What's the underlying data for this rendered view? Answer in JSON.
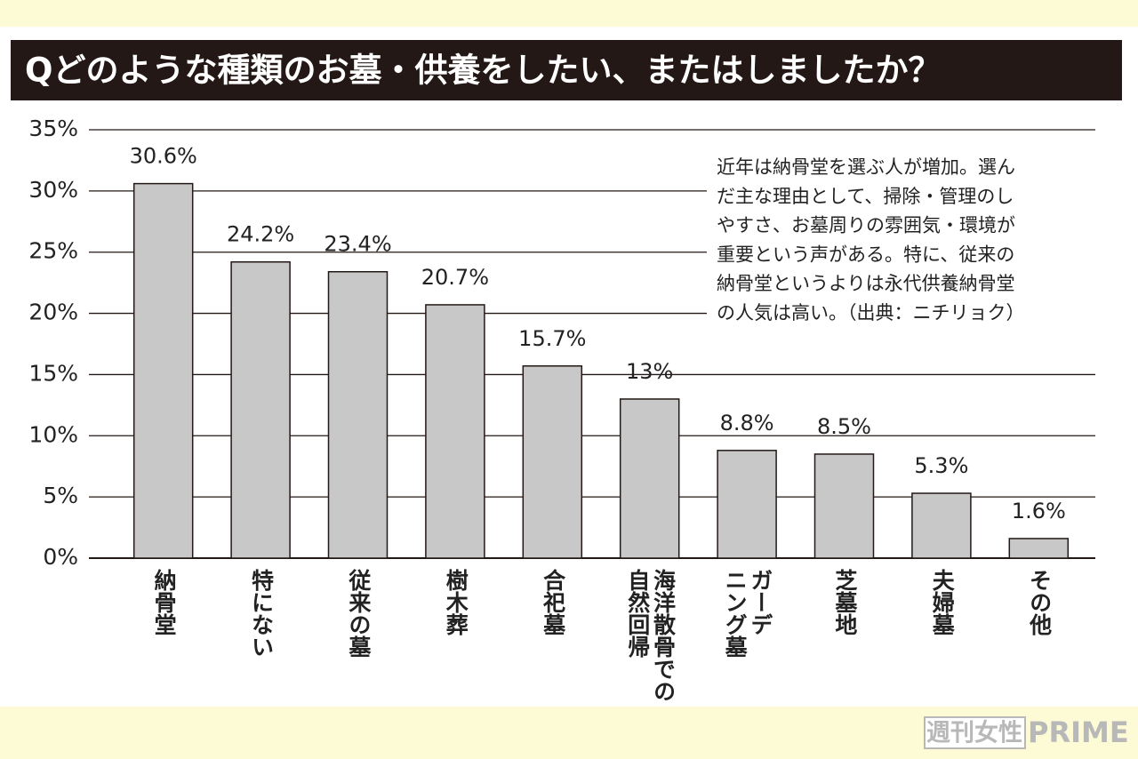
{
  "chart_data": {
    "type": "bar",
    "title": "Qどのような種類のお墓・供養をしたい、またはしましたか？",
    "categories": [
      "納骨堂",
      "特にない",
      "従来の墓",
      "樹木葬",
      "合祀墓",
      "海洋散骨での\n自然回帰",
      "ガーデ\nニング墓",
      "芝墓地",
      "夫婦墓",
      "その他"
    ],
    "values": [
      30.6,
      24.2,
      23.4,
      20.7,
      15.7,
      13,
      8.8,
      8.5,
      5.3,
      1.6
    ],
    "value_labels": [
      "30.6%",
      "24.2%",
      "23.4%",
      "20.7%",
      "15.7%",
      "13%",
      "8.8%",
      "8.5%",
      "5.3%",
      "1.6%"
    ],
    "color": "#c8c8c8",
    "ylim": [
      0,
      35
    ],
    "yticks": [
      {
        "value": 0,
        "label": "0%"
      },
      {
        "value": 5,
        "label": "5%"
      },
      {
        "value": 10,
        "label": "10%"
      },
      {
        "value": 15,
        "label": "15%"
      },
      {
        "value": 20,
        "label": "20%"
      },
      {
        "value": 25,
        "label": "25%"
      },
      {
        "value": 30,
        "label": "30%"
      },
      {
        "value": 35,
        "label": "35%"
      }
    ],
    "grid": true,
    "annotation": [
      "近年は納骨堂を選ぶ人が増加。選ん",
      "だ主な理由として、掃除・管理のし",
      "やすさ、お墓周りの雰囲気・環境が",
      "重要という声がある。特に、従来の",
      "納骨堂というよりは永代供養納骨堂",
      "の人気は高い。（出典：ニチリョク）"
    ]
  },
  "watermark": {
    "brand": "週刊女性",
    "suffix": "PRIME"
  }
}
